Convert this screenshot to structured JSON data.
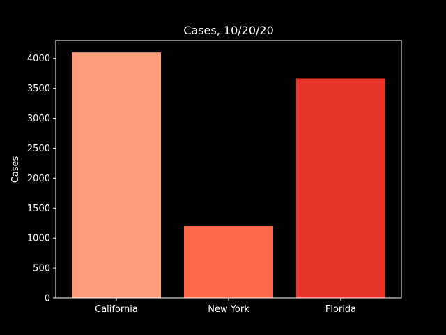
{
  "chart_data": {
    "type": "bar",
    "title": "Cases, 10/20/20",
    "xlabel": "",
    "ylabel": "Cases",
    "categories": [
      "California",
      "New York",
      "Florida"
    ],
    "values": [
      4100,
      1200,
      3665
    ],
    "colors": [
      "#fc9c7d",
      "#fd6a4a",
      "#e8352c"
    ],
    "ylim": [
      0,
      4300
    ],
    "yticks": [
      0,
      500,
      1000,
      1500,
      2000,
      2500,
      3000,
      3500,
      4000
    ],
    "grid": false,
    "legend": "none"
  }
}
